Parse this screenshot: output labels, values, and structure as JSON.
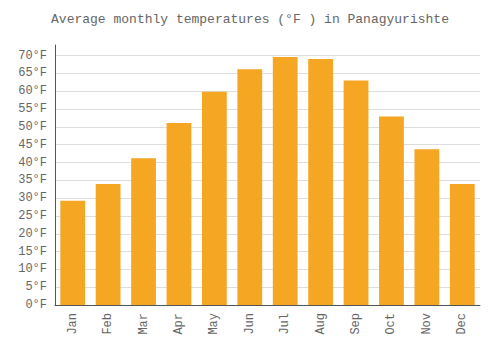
{
  "chart_data": {
    "type": "bar",
    "title": "Average monthly temperatures (°F ) in Panagyurishte",
    "categories": [
      "Jan",
      "Feb",
      "Mar",
      "Apr",
      "May",
      "Jun",
      "Jul",
      "Aug",
      "Sep",
      "Oct",
      "Nov",
      "Dec"
    ],
    "values": [
      29.3,
      34.0,
      41.2,
      51.1,
      59.9,
      66.2,
      69.6,
      69.1,
      63.0,
      52.9,
      43.7,
      34.0
    ],
    "color": "#F5A623",
    "ylim": [
      0,
      73
    ],
    "yticks": [
      {
        "value": 0,
        "label": "0°F"
      },
      {
        "value": 5,
        "label": "5°F"
      },
      {
        "value": 10,
        "label": "10°F"
      },
      {
        "value": 15,
        "label": "15°F"
      },
      {
        "value": 20,
        "label": "20°F"
      },
      {
        "value": 25,
        "label": "25°F"
      },
      {
        "value": 30,
        "label": "30°F"
      },
      {
        "value": 35,
        "label": "35°F"
      },
      {
        "value": 40,
        "label": "40°F"
      },
      {
        "value": 45,
        "label": "45°F"
      },
      {
        "value": 50,
        "label": "50°F"
      },
      {
        "value": 55,
        "label": "55°F"
      },
      {
        "value": 60,
        "label": "60°F"
      },
      {
        "value": 65,
        "label": "65°F"
      },
      {
        "value": 70,
        "label": "70°F"
      }
    ],
    "grid": true
  }
}
